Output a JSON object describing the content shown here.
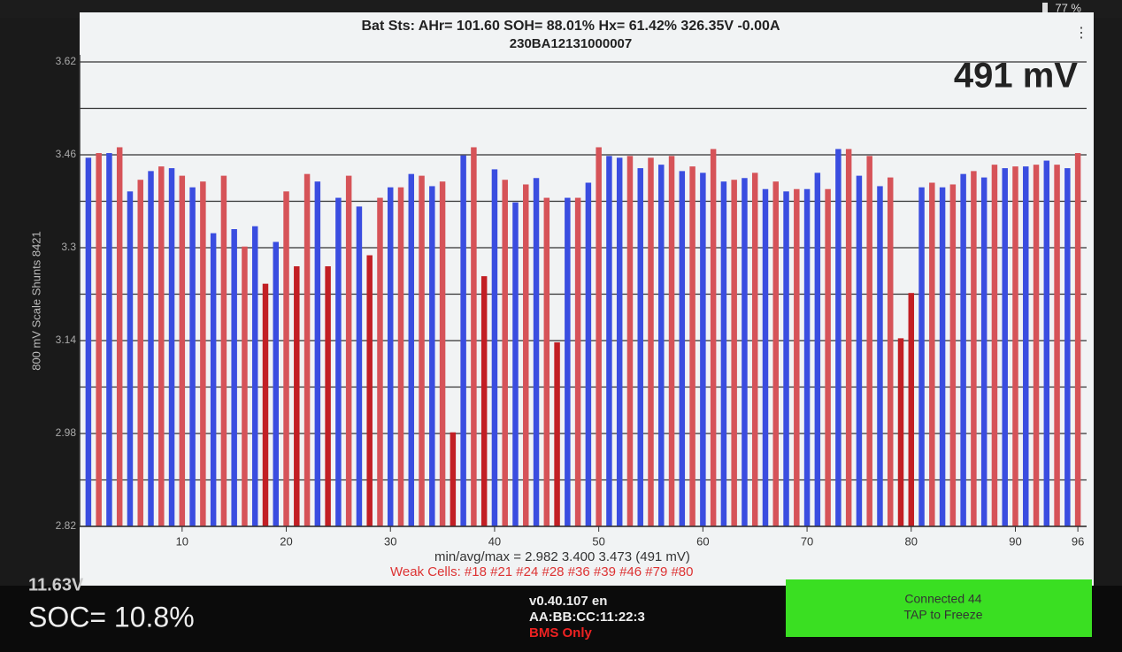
{
  "status_bar": {
    "battery": "77 %"
  },
  "header": {
    "title": "Bat Sts:  AHr= 101.60  SOH= 88.01%  Hx= 61.42%  326.35V -0.00A",
    "serial": "230BA12131000007",
    "spread": "491 mV"
  },
  "chart_data": {
    "type": "bar",
    "ylabel": "800 mV Scale   Shunts 8421",
    "x": [
      1,
      2,
      3,
      4,
      5,
      6,
      7,
      8,
      9,
      10,
      11,
      12,
      13,
      14,
      15,
      16,
      17,
      18,
      19,
      20,
      21,
      22,
      23,
      24,
      25,
      26,
      27,
      28,
      29,
      30,
      31,
      32,
      33,
      34,
      35,
      36,
      37,
      38,
      39,
      40,
      41,
      42,
      43,
      44,
      45,
      46,
      47,
      48,
      49,
      50,
      51,
      52,
      53,
      54,
      55,
      56,
      57,
      58,
      59,
      60,
      61,
      62,
      63,
      64,
      65,
      66,
      67,
      68,
      69,
      70,
      71,
      72,
      73,
      74,
      75,
      76,
      77,
      78,
      79,
      80,
      81,
      82,
      83,
      84,
      85,
      86,
      87,
      88,
      89,
      90,
      91,
      92,
      93,
      94,
      95,
      96
    ],
    "values": [
      3.455,
      3.463,
      3.463,
      3.473,
      3.397,
      3.417,
      3.432,
      3.44,
      3.437,
      3.424,
      3.404,
      3.414,
      3.325,
      3.424,
      3.332,
      3.302,
      3.337,
      3.238,
      3.31,
      3.397,
      3.268,
      3.427,
      3.414,
      3.268,
      3.386,
      3.424,
      3.371,
      3.287,
      3.386,
      3.404,
      3.404,
      3.427,
      3.424,
      3.406,
      3.414,
      2.982,
      3.459,
      3.473,
      3.251,
      3.435,
      3.417,
      3.378,
      3.409,
      3.42,
      3.386,
      3.137,
      3.386,
      3.386,
      3.412,
      3.473,
      3.458,
      3.455,
      3.458,
      3.437,
      3.455,
      3.443,
      3.458,
      3.432,
      3.44,
      3.429,
      3.47,
      3.414,
      3.417,
      3.42,
      3.429,
      3.401,
      3.414,
      3.397,
      3.401,
      3.401,
      3.429,
      3.401,
      3.47,
      3.47,
      3.424,
      3.458,
      3.406,
      3.421,
      3.144,
      3.222,
      3.404,
      3.412,
      3.404,
      3.409,
      3.427,
      3.432,
      3.421,
      3.443,
      3.437,
      3.44,
      3.44,
      3.443,
      3.45,
      3.443,
      3.437,
      3.463
    ],
    "colors": [
      "#3a4de0",
      "#d65358",
      "#3a4de0",
      "#d65358",
      "#3a4de0",
      "#d65358",
      "#3a4de0",
      "#d65358",
      "#3a4de0",
      "#d65358",
      "#3a4de0",
      "#d65358",
      "#3a4de0",
      "#d65358",
      "#3a4de0",
      "#d65358",
      "#3a4de0",
      "#c21f24",
      "#3a4de0",
      "#d65358",
      "#c21f24",
      "#d65358",
      "#3a4de0",
      "#c21f24",
      "#3a4de0",
      "#d65358",
      "#3a4de0",
      "#c21f24",
      "#d65358",
      "#3a4de0",
      "#d65358",
      "#3a4de0",
      "#d65358",
      "#3a4de0",
      "#d65358",
      "#c21f24",
      "#3a4de0",
      "#d65358",
      "#c21f24",
      "#3a4de0",
      "#d65358",
      "#3a4de0",
      "#d65358",
      "#3a4de0",
      "#d65358",
      "#c21f24",
      "#3a4de0",
      "#d65358",
      "#3a4de0",
      "#d65358",
      "#3a4de0",
      "#3a4de0",
      "#d65358",
      "#3a4de0",
      "#d65358",
      "#3a4de0",
      "#d65358",
      "#3a4de0",
      "#d65358",
      "#3a4de0",
      "#d65358",
      "#3a4de0",
      "#d65358",
      "#3a4de0",
      "#d65358",
      "#3a4de0",
      "#d65358",
      "#3a4de0",
      "#d65358",
      "#3a4de0",
      "#3a4de0",
      "#d65358",
      "#3a4de0",
      "#d65358",
      "#3a4de0",
      "#d65358",
      "#3a4de0",
      "#d65358",
      "#c21f24",
      "#c21f24",
      "#3a4de0",
      "#d65358",
      "#3a4de0",
      "#d65358",
      "#3a4de0",
      "#d65358",
      "#3a4de0",
      "#d65358",
      "#3a4de0",
      "#d65358",
      "#3a4de0",
      "#d65358",
      "#3a4de0",
      "#d65358",
      "#3a4de0",
      "#d65358"
    ],
    "xlim": [
      0.5,
      96.5
    ],
    "xticks": [
      10,
      20,
      30,
      40,
      50,
      60,
      70,
      80,
      90,
      96
    ],
    "ylim": [
      2.82,
      3.62
    ],
    "yticks": [
      2.82,
      2.98,
      3.14,
      3.3,
      3.46,
      3.62
    ],
    "minor_yticks": [
      2.9,
      3.06,
      3.22,
      3.38,
      3.54
    ],
    "grid": true
  },
  "chart_footer": {
    "stats": "min/avg/max = 2.982 3.400 3.473  (491 mV)",
    "weak": "Weak Cells:  #18 #21 #24 #28 #36 #39 #46 #79 #80"
  },
  "bottom_bar": {
    "voltage": "11.63V",
    "soc": "SOC= 10.8%",
    "version": "v0.40.107 en",
    "mac": "AA:BB:CC:11:22:3",
    "mode": "BMS Only",
    "button_line1": "Connected 44",
    "button_line2": "TAP to Freeze"
  }
}
